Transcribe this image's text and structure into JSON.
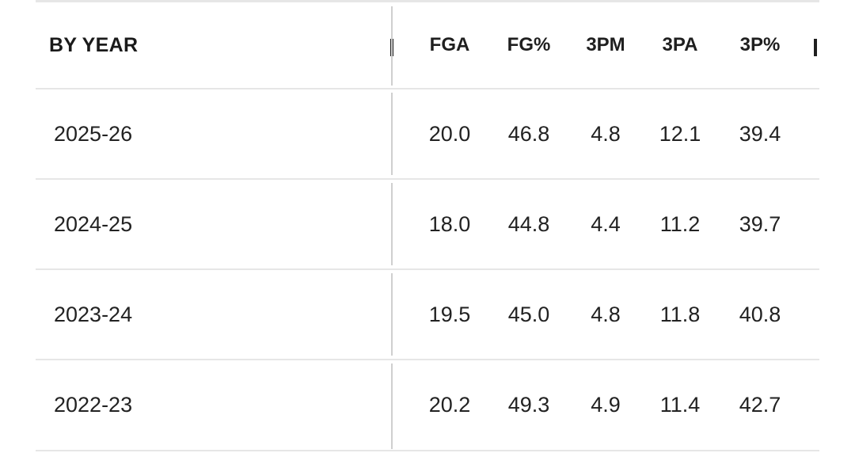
{
  "table": {
    "header": {
      "label": "BY YEAR",
      "columns": [
        "FGA",
        "FG%",
        "3PM",
        "3PA",
        "3P%"
      ]
    },
    "rows": [
      {
        "year": "2025-26",
        "values": [
          "20.0",
          "46.8",
          "4.8",
          "12.1",
          "39.4"
        ]
      },
      {
        "year": "2024-25",
        "values": [
          "18.0",
          "44.8",
          "4.4",
          "11.2",
          "39.7"
        ]
      },
      {
        "year": "2023-24",
        "values": [
          "19.5",
          "45.0",
          "4.8",
          "11.8",
          "40.8"
        ]
      },
      {
        "year": "2022-23",
        "values": [
          "20.2",
          "49.3",
          "4.9",
          "11.4",
          "42.7"
        ]
      }
    ]
  }
}
